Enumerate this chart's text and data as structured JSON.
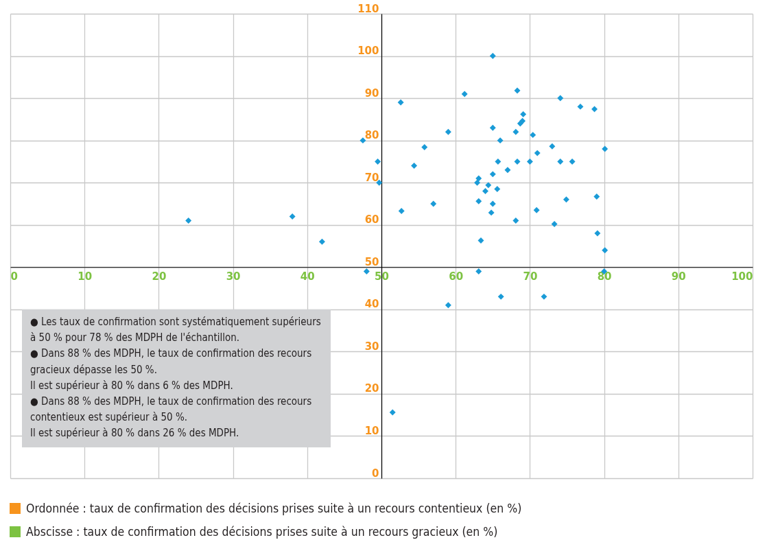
{
  "chart_data": {
    "type": "scatter",
    "annotations": [
      "● Les taux de confirmation sont systématiquement supérieurs à 50 % pour 78 % des MDPH de l'échantillon.",
      "● Dans 88 % des MDPH, le taux de confirmation des recours gracieux dépasse les 50 %.",
      "Il est supérieur à 80 % dans 6 % des MDPH.",
      "● Dans 88 % des MDPH, le taux de confirmation des recours contentieux est supérieur à 50 %.",
      "Il est supérieur à 80 % dans 26 % des MDPH.",
      "Ordonnée : taux de confirmation des décisions prises suite à un recours contentieux (en %)",
      "Abscisse : taux de confirmation des décisions prises suite à un recours gracieux (en %)"
    ],
    "x": [
      24,
      38,
      42,
      48,
      47.5,
      49.5,
      49.7,
      52.6,
      52.7,
      54.4,
      55.8,
      57,
      59,
      59,
      61.2,
      62.9,
      63.1,
      63.1,
      63.1,
      63.4,
      64.4,
      64,
      64.8,
      65,
      65,
      65,
      65,
      65.6,
      65.7,
      66,
      66.1,
      67,
      68.3,
      68.1,
      68.3,
      68.1,
      68.7,
      69,
      69.1,
      70,
      70.4,
      70.9,
      71,
      71.9,
      73,
      73.3,
      74.1,
      74.1,
      74.9,
      75.7,
      76.8,
      78.7,
      79,
      79.1,
      80.1,
      80.1,
      80,
      51.5
    ],
    "values": [
      61,
      62,
      56,
      49,
      80,
      75,
      70,
      89,
      63.3,
      74,
      78.4,
      65,
      82,
      41,
      91,
      70,
      71,
      65.6,
      49,
      56.3,
      69.4,
      68,
      62.9,
      65,
      100,
      83,
      72,
      68.5,
      75,
      80,
      43,
      73,
      91.8,
      82,
      75,
      61,
      84,
      84.6,
      86.2,
      75,
      81.3,
      63.5,
      77,
      43,
      78.6,
      60.2,
      90,
      75,
      66,
      75,
      88,
      87.4,
      66.7,
      58,
      78,
      54,
      49,
      15.6
    ],
    "color": "#1a9bd7",
    "marker": "diamond",
    "xlim": [
      0,
      100
    ],
    "xticks": [
      0,
      10,
      20,
      30,
      40,
      50,
      60,
      70,
      80,
      90,
      100
    ],
    "ylim": [
      0,
      110
    ],
    "yticks": [
      0,
      10,
      20,
      30,
      40,
      50,
      60,
      70,
      80,
      90,
      100,
      110
    ],
    "grid": true
  }
}
